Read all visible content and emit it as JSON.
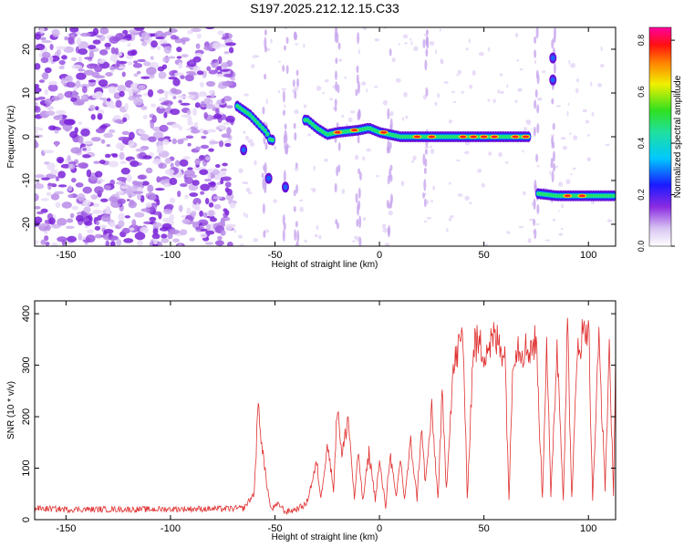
{
  "figure": {
    "title": "S197.2025.212.12.15.C33"
  },
  "chart_data": [
    {
      "type": "heatmap",
      "xlabel": "Height of straight line (km)",
      "ylabel": "Frequency (Hz)",
      "xlim": [
        -165,
        113
      ],
      "ylim": [
        -25,
        25
      ],
      "x_ticks": [
        -150,
        -100,
        -50,
        0,
        50,
        100
      ],
      "y_ticks": [
        -20,
        -10,
        0,
        10,
        20
      ],
      "colorbar": {
        "label": "Normalized spectral amplitude",
        "range": [
          0.0,
          0.85
        ],
        "ticks": [
          0.0,
          0.2,
          0.4,
          0.6,
          0.8
        ],
        "colormap": "rainbow (white-violet-blue-cyan-green-yellow-red-magenta)"
      },
      "ridge": [
        {
          "x": -68,
          "y": 7
        },
        {
          "x": -62,
          "y": 5
        },
        {
          "x": -58,
          "y": 3
        },
        {
          "x": -54,
          "y": 1
        },
        {
          "x": -52,
          "y": -1
        },
        {
          "x": -35,
          "y": 4
        },
        {
          "x": -30,
          "y": 2
        },
        {
          "x": -25,
          "y": 0.5
        },
        {
          "x": -20,
          "y": 1
        },
        {
          "x": -10,
          "y": 1.5
        },
        {
          "x": -5,
          "y": 2
        },
        {
          "x": 0,
          "y": 1
        },
        {
          "x": 10,
          "y": 0
        },
        {
          "x": 20,
          "y": 0
        },
        {
          "x": 30,
          "y": 0
        },
        {
          "x": 40,
          "y": 0
        },
        {
          "x": 50,
          "y": 0
        },
        {
          "x": 60,
          "y": 0
        },
        {
          "x": 72,
          "y": 0
        },
        {
          "x": 76,
          "y": -13
        },
        {
          "x": 85,
          "y": -13.5
        },
        {
          "x": 95,
          "y": -13.5
        },
        {
          "x": 105,
          "y": -13.5
        },
        {
          "x": 113,
          "y": -13.5
        }
      ]
    },
    {
      "type": "line",
      "xlabel": "Height of straight line (km)",
      "ylabel": "SNR (10 * v/v)",
      "xlim": [
        -165,
        113
      ],
      "ylim": [
        0,
        425
      ],
      "x_ticks": [
        -150,
        -100,
        -50,
        0,
        50,
        100
      ],
      "y_ticks": [
        0,
        100,
        200,
        300,
        400
      ],
      "color": "#e03030",
      "series": [
        {
          "x": [
            -165,
            -150,
            -130,
            -110,
            -90,
            -75,
            -65,
            -60,
            -58,
            -55,
            -52,
            -48,
            -45,
            -40,
            -35,
            -30,
            -28,
            -25,
            -22,
            -20,
            -18,
            -15,
            -12,
            -10,
            -8,
            -5,
            -2,
            0,
            3,
            5,
            8,
            10,
            12,
            15,
            18,
            20,
            22,
            25,
            28,
            30,
            32,
            35,
            37,
            40,
            42,
            45,
            50,
            55,
            60,
            62,
            64,
            66,
            70,
            75,
            78,
            80,
            82,
            85,
            88,
            90,
            92,
            95,
            98,
            100,
            102,
            105,
            108,
            110,
            112,
            113
          ],
          "y": [
            22,
            20,
            20,
            20,
            21,
            21,
            22,
            50,
            220,
            100,
            20,
            30,
            15,
            20,
            30,
            110,
            40,
            150,
            60,
            230,
            120,
            200,
            40,
            130,
            35,
            130,
            40,
            110,
            25,
            130,
            40,
            120,
            40,
            150,
            40,
            180,
            70,
            210,
            40,
            240,
            60,
            280,
            320,
            360,
            40,
            345,
            330,
            350,
            330,
            40,
            330,
            340,
            330,
            345,
            40,
            360,
            40,
            340,
            40,
            380,
            40,
            345,
            360,
            395,
            40,
            350,
            60,
            340,
            40,
            330
          ]
        }
      ]
    }
  ]
}
